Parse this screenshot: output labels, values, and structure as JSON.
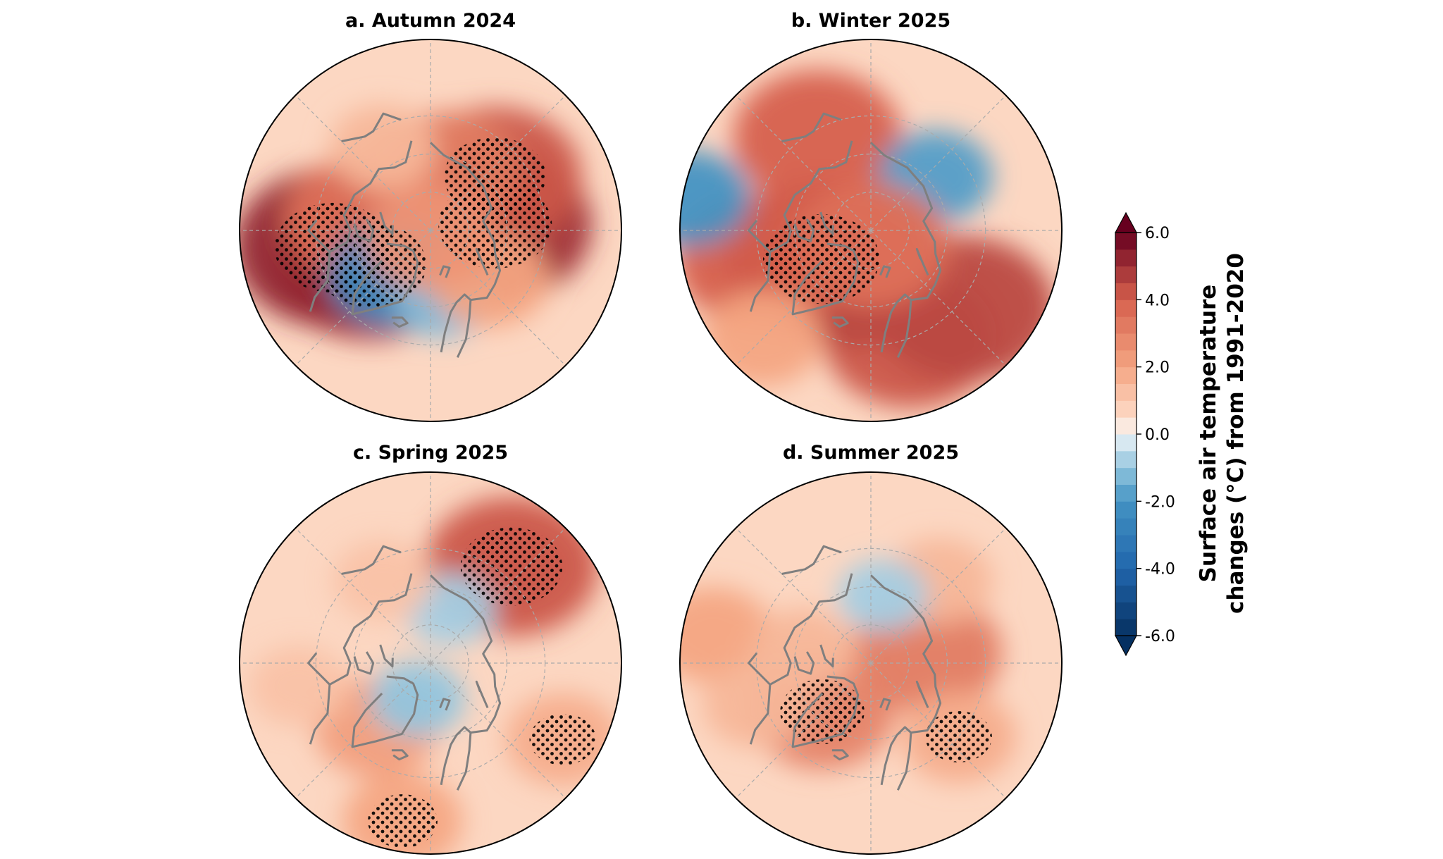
{
  "chart_data": {
    "type": "heatmap",
    "projection": "north-polar-stereographic",
    "panels": [
      {
        "id": "a",
        "title": "a. Autumn 2024",
        "features": [
          {
            "lon": 95,
            "lat": 73,
            "value": 5.0,
            "stippled": true
          },
          {
            "lon": 130,
            "lat": 68,
            "value": 4.2,
            "stippled": true
          },
          {
            "lon": 165,
            "lat": 74,
            "value": 3.2,
            "stippled": false
          },
          {
            "lon": -60,
            "lat": 72,
            "value": 4.8,
            "stippled": true
          },
          {
            "lon": -80,
            "lat": 64,
            "value": 5.2,
            "stippled": true
          },
          {
            "lon": -100,
            "lat": 72,
            "value": 3.5,
            "stippled": false
          },
          {
            "lon": -40,
            "lat": 75,
            "value": -2.5,
            "stippled": false
          },
          {
            "lon": 10,
            "lat": 72,
            "value": -1.2,
            "stippled": false
          },
          {
            "lon": 50,
            "lat": 70,
            "value": 2.0,
            "stippled": false
          },
          {
            "lon": -150,
            "lat": 65,
            "value": 1.5,
            "stippled": false
          },
          {
            "lon": 0,
            "lat": 88,
            "value": 2.5,
            "stippled": false
          }
        ]
      },
      {
        "id": "b",
        "title": "b. Winter 2025",
        "features": [
          {
            "lon": 20,
            "lat": 60,
            "value": 4.2,
            "stippled": false
          },
          {
            "lon": 50,
            "lat": 58,
            "value": 4.5,
            "stippled": false
          },
          {
            "lon": -60,
            "lat": 75,
            "value": 5.2,
            "stippled": true
          },
          {
            "lon": -20,
            "lat": 78,
            "value": 4.5,
            "stippled": false
          },
          {
            "lon": -75,
            "lat": 60,
            "value": 4.0,
            "stippled": false
          },
          {
            "lon": -150,
            "lat": 62,
            "value": 4.0,
            "stippled": false
          },
          {
            "lon": 130,
            "lat": 68,
            "value": -1.8,
            "stippled": false
          },
          {
            "lon": -100,
            "lat": 42,
            "value": -2.0,
            "stippled": false
          },
          {
            "lon": 0,
            "lat": 86,
            "value": 3.5,
            "stippled": false
          },
          {
            "lon": -45,
            "lat": 50,
            "value": 2.0,
            "stippled": false
          }
        ]
      },
      {
        "id": "c",
        "title": "c. Spring 2025",
        "features": [
          {
            "lon": 140,
            "lat": 57,
            "value": 4.2,
            "stippled": true
          },
          {
            "lon": -40,
            "lat": 68,
            "value": 2.2,
            "stippled": false
          },
          {
            "lon": -10,
            "lat": 48,
            "value": 2.0,
            "stippled": true
          },
          {
            "lon": 60,
            "lat": 50,
            "value": 1.8,
            "stippled": true
          },
          {
            "lon": -80,
            "lat": 55,
            "value": 1.2,
            "stippled": false
          },
          {
            "lon": -20,
            "lat": 80,
            "value": -1.0,
            "stippled": false
          },
          {
            "lon": 160,
            "lat": 75,
            "value": -0.8,
            "stippled": false
          },
          {
            "lon": -150,
            "lat": 65,
            "value": 1.2,
            "stippled": false
          }
        ]
      },
      {
        "id": "d",
        "title": "d. Summer 2025",
        "features": [
          {
            "lon": 100,
            "lat": 75,
            "value": 3.2,
            "stippled": false
          },
          {
            "lon": 50,
            "lat": 60,
            "value": 1.8,
            "stippled": true
          },
          {
            "lon": -45,
            "lat": 72,
            "value": 3.0,
            "stippled": true
          },
          {
            "lon": -100,
            "lat": 48,
            "value": 2.0,
            "stippled": false
          },
          {
            "lon": -100,
            "lat": 72,
            "value": 1.5,
            "stippled": false
          },
          {
            "lon": 140,
            "lat": 62,
            "value": 1.5,
            "stippled": false
          },
          {
            "lon": -70,
            "lat": 58,
            "value": 1.5,
            "stippled": false
          },
          {
            "lon": 170,
            "lat": 72,
            "value": -0.8,
            "stippled": false
          }
        ]
      }
    ],
    "colorbar": {
      "label_lines": [
        "Surface air temperature",
        "changes (°C) from 1991-2020"
      ],
      "range": [
        -6.0,
        6.0
      ],
      "ticks": [
        "6.0",
        "4.0",
        "2.0",
        "0.0",
        "-2.0",
        "-4.0",
        "-6.0"
      ],
      "tick_values": [
        6,
        4,
        2,
        0,
        -2,
        -4,
        -6
      ],
      "levels_step": 0.5,
      "extend": "both",
      "colormap": "RdBu_r",
      "placement": "right"
    },
    "colors": {
      "coastline": "#7f7f7f",
      "gridline": "#aaaaaa",
      "border": "#000000",
      "stipple": "#000000"
    }
  }
}
